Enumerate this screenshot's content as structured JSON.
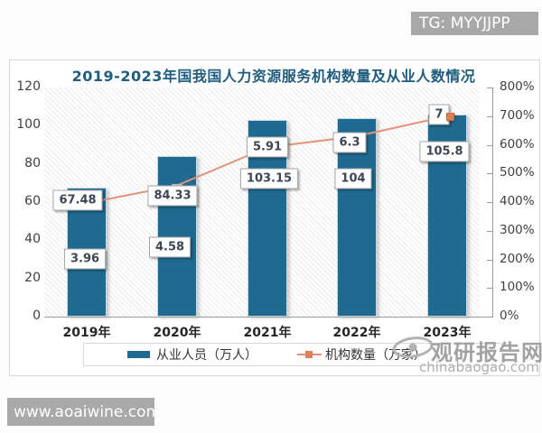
{
  "overlay": {
    "tg_badge": "TG: MYYJJPP",
    "site_badge": "www.aoaiwine.com"
  },
  "watermark": {
    "name": "观研报告网",
    "domain": "chinabaogao.com"
  },
  "chart_data": {
    "type": "bar",
    "combo": "bar+line",
    "title": "2019-2023年国我国人力资源服务机构数量及从业人数情况",
    "categories": [
      "2019年",
      "2020年",
      "2021年",
      "2022年",
      "2023年"
    ],
    "series": [
      {
        "name": "从业人员（万人）",
        "type": "bar",
        "axis": "left",
        "color": "#1e6a90",
        "values": [
          67.48,
          84.33,
          103.15,
          104,
          105.8
        ],
        "labels": [
          "67.48",
          "84.33",
          "103.15",
          "104",
          "105.8"
        ]
      },
      {
        "name": "机构数量（万家）",
        "type": "line",
        "axis": "right",
        "color": "#e2927a",
        "marker_color": "#dd7f58",
        "values": [
          3.96,
          4.58,
          5.91,
          6.3,
          7
        ],
        "labels": [
          "3.96",
          "4.58",
          "5.91",
          "6.3",
          "7"
        ]
      }
    ],
    "left_axis": {
      "min": 0,
      "max": 120,
      "step": 20,
      "tick_labels": [
        "120",
        "100",
        "80",
        "60",
        "40",
        "20",
        "0"
      ]
    },
    "right_axis": {
      "min": "0%",
      "max": "800%",
      "step": "100%",
      "tick_labels": [
        "800%",
        "700%",
        "600%",
        "500%",
        "400%",
        "300%",
        "200%",
        "100%",
        "0%"
      ]
    },
    "legend_position": "bottom",
    "grid": false,
    "plot_background": "diagonal-hatch"
  }
}
